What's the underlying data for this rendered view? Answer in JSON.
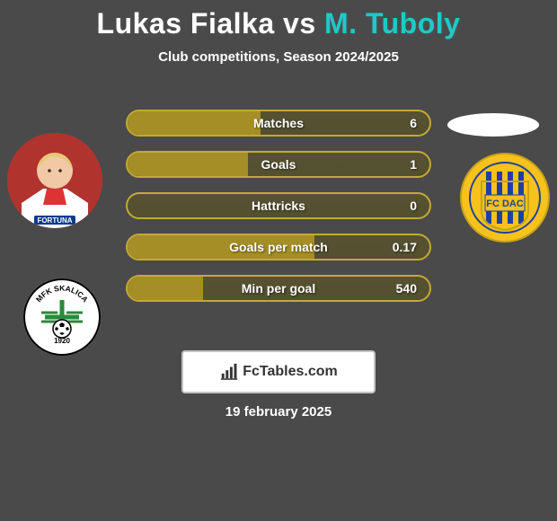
{
  "title": "Lukas Fialka vs M. Tuboly",
  "subtitle": "Club competitions, Season 2024/2025",
  "date": "19 february 2025",
  "brand": "FcTables.com",
  "colors": {
    "pill_border": "#c3a936",
    "pill_fill": "#a58e25",
    "accent_highlight": "#1ec9c9"
  },
  "left_player": {
    "name": "Lukas Fialka",
    "jersey_text": "FORTUNA",
    "club_badge_text": "MFK SKALICA",
    "club_badge_year": "1920",
    "club_colors": {
      "primary": "#2a8a3b",
      "secondary": "#ffffff",
      "outline": "#000000"
    }
  },
  "right_player": {
    "name": "M. Tuboly",
    "club_badge_text": "FC DAC",
    "club_colors": {
      "primary": "#1f3fa4",
      "secondary": "#f6c21b",
      "outline": "#c6a21a"
    }
  },
  "stats": [
    {
      "label": "Matches",
      "value": "6",
      "fill_pct": 44
    },
    {
      "label": "Goals",
      "value": "1",
      "fill_pct": 40
    },
    {
      "label": "Hattricks",
      "value": "0",
      "fill_pct": 0
    },
    {
      "label": "Goals per match",
      "value": "0.17",
      "fill_pct": 62
    },
    {
      "label": "Min per goal",
      "value": "540",
      "fill_pct": 25
    }
  ]
}
